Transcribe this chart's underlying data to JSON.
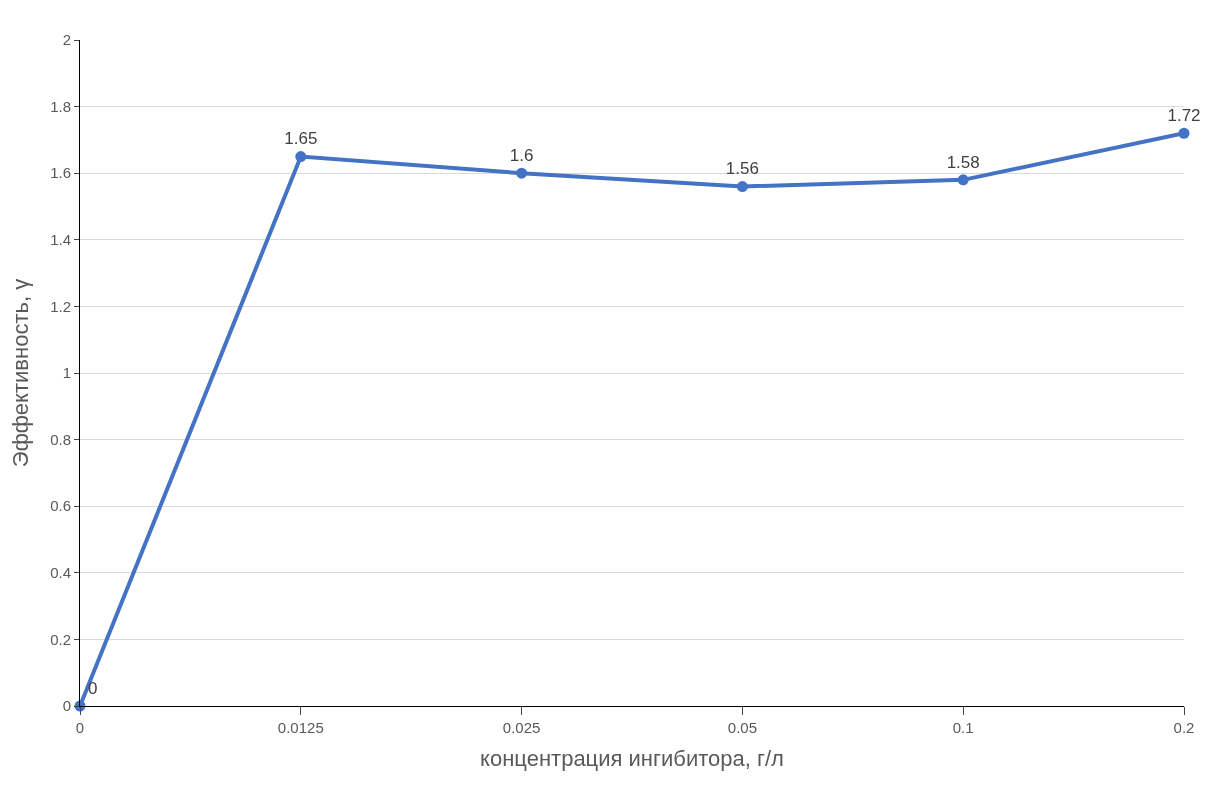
{
  "chart_data": {
    "type": "line",
    "xlabel": "концентрация ингибитора, г/л",
    "ylabel": "Эффективность, γ",
    "categories": [
      "0",
      "0.0125",
      "0.025",
      "0.05",
      "0.1",
      "0.2"
    ],
    "series": [
      {
        "color": "#4472c4",
        "values": [
          0,
          1.65,
          1.6,
          1.56,
          1.58,
          1.72
        ]
      }
    ],
    "ylim": [
      0,
      2
    ],
    "yticks": [
      0,
      0.2,
      0.4,
      0.6,
      0.8,
      1,
      1.2,
      1.4,
      1.6,
      1.8,
      2
    ],
    "grid": "y",
    "data_labels": true,
    "marker": "circle",
    "line_style": "solid"
  }
}
